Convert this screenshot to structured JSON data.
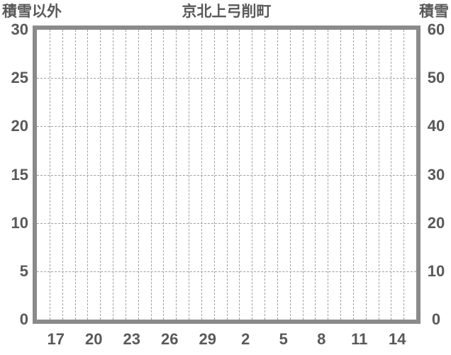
{
  "chart_data": {
    "type": "line",
    "title": "京北上弓削町",
    "left_axis": {
      "label": "積雪以外",
      "min": 0,
      "max": 30,
      "ticks": [
        "0",
        "5",
        "10",
        "15",
        "20",
        "25",
        "30"
      ]
    },
    "right_axis": {
      "label": "積雪",
      "min": 0,
      "max": 60,
      "ticks": [
        "0",
        "10",
        "20",
        "30",
        "40",
        "50",
        "60"
      ]
    },
    "x_axis": {
      "day_cells": 30,
      "labels": [
        {
          "text": "17",
          "cell": 1
        },
        {
          "text": "20",
          "cell": 4
        },
        {
          "text": "23",
          "cell": 7
        },
        {
          "text": "26",
          "cell": 10
        },
        {
          "text": "29",
          "cell": 13
        },
        {
          "text": "2",
          "cell": 16
        },
        {
          "text": "5",
          "cell": 19
        },
        {
          "text": "8",
          "cell": 22
        },
        {
          "text": "11",
          "cell": 25
        },
        {
          "text": "14",
          "cell": 28
        }
      ]
    },
    "grid": {
      "vertical_internal_lines": 29,
      "horizontal_values_left_scale": [
        5,
        10,
        15,
        20,
        25
      ]
    },
    "series": [],
    "legend": "none",
    "colors": {
      "border": "#8a8a8a",
      "grid": "#a0a0a0",
      "text": "#595959",
      "background": "#ffffff"
    }
  }
}
